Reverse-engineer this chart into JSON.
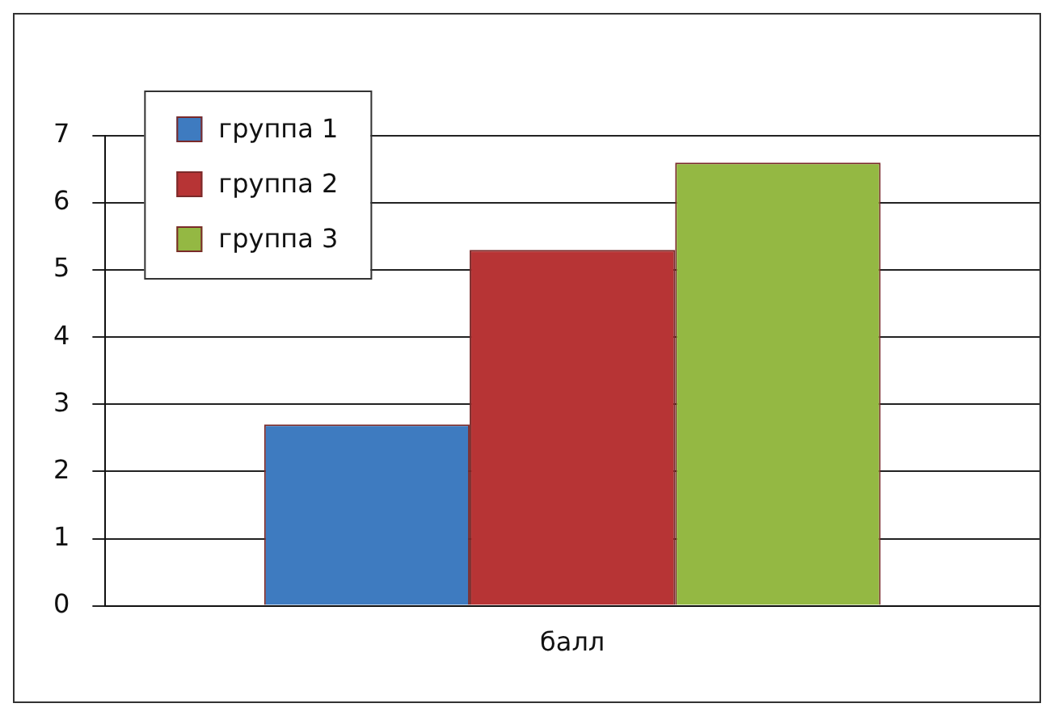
{
  "chart_data": {
    "type": "bar",
    "categories": [
      "балл"
    ],
    "series": [
      {
        "name": "группа 1",
        "color": "#3e7bc0",
        "values": [
          2.7
        ]
      },
      {
        "name": "группа 2",
        "color": "#b73435",
        "values": [
          5.3
        ]
      },
      {
        "name": "группа 3",
        "color": "#94b843",
        "values": [
          6.6
        ]
      }
    ],
    "ylim": [
      0,
      7
    ],
    "yticks": [
      0,
      1,
      2,
      3,
      4,
      5,
      6,
      7
    ],
    "grid": "y",
    "legend": "top left"
  }
}
